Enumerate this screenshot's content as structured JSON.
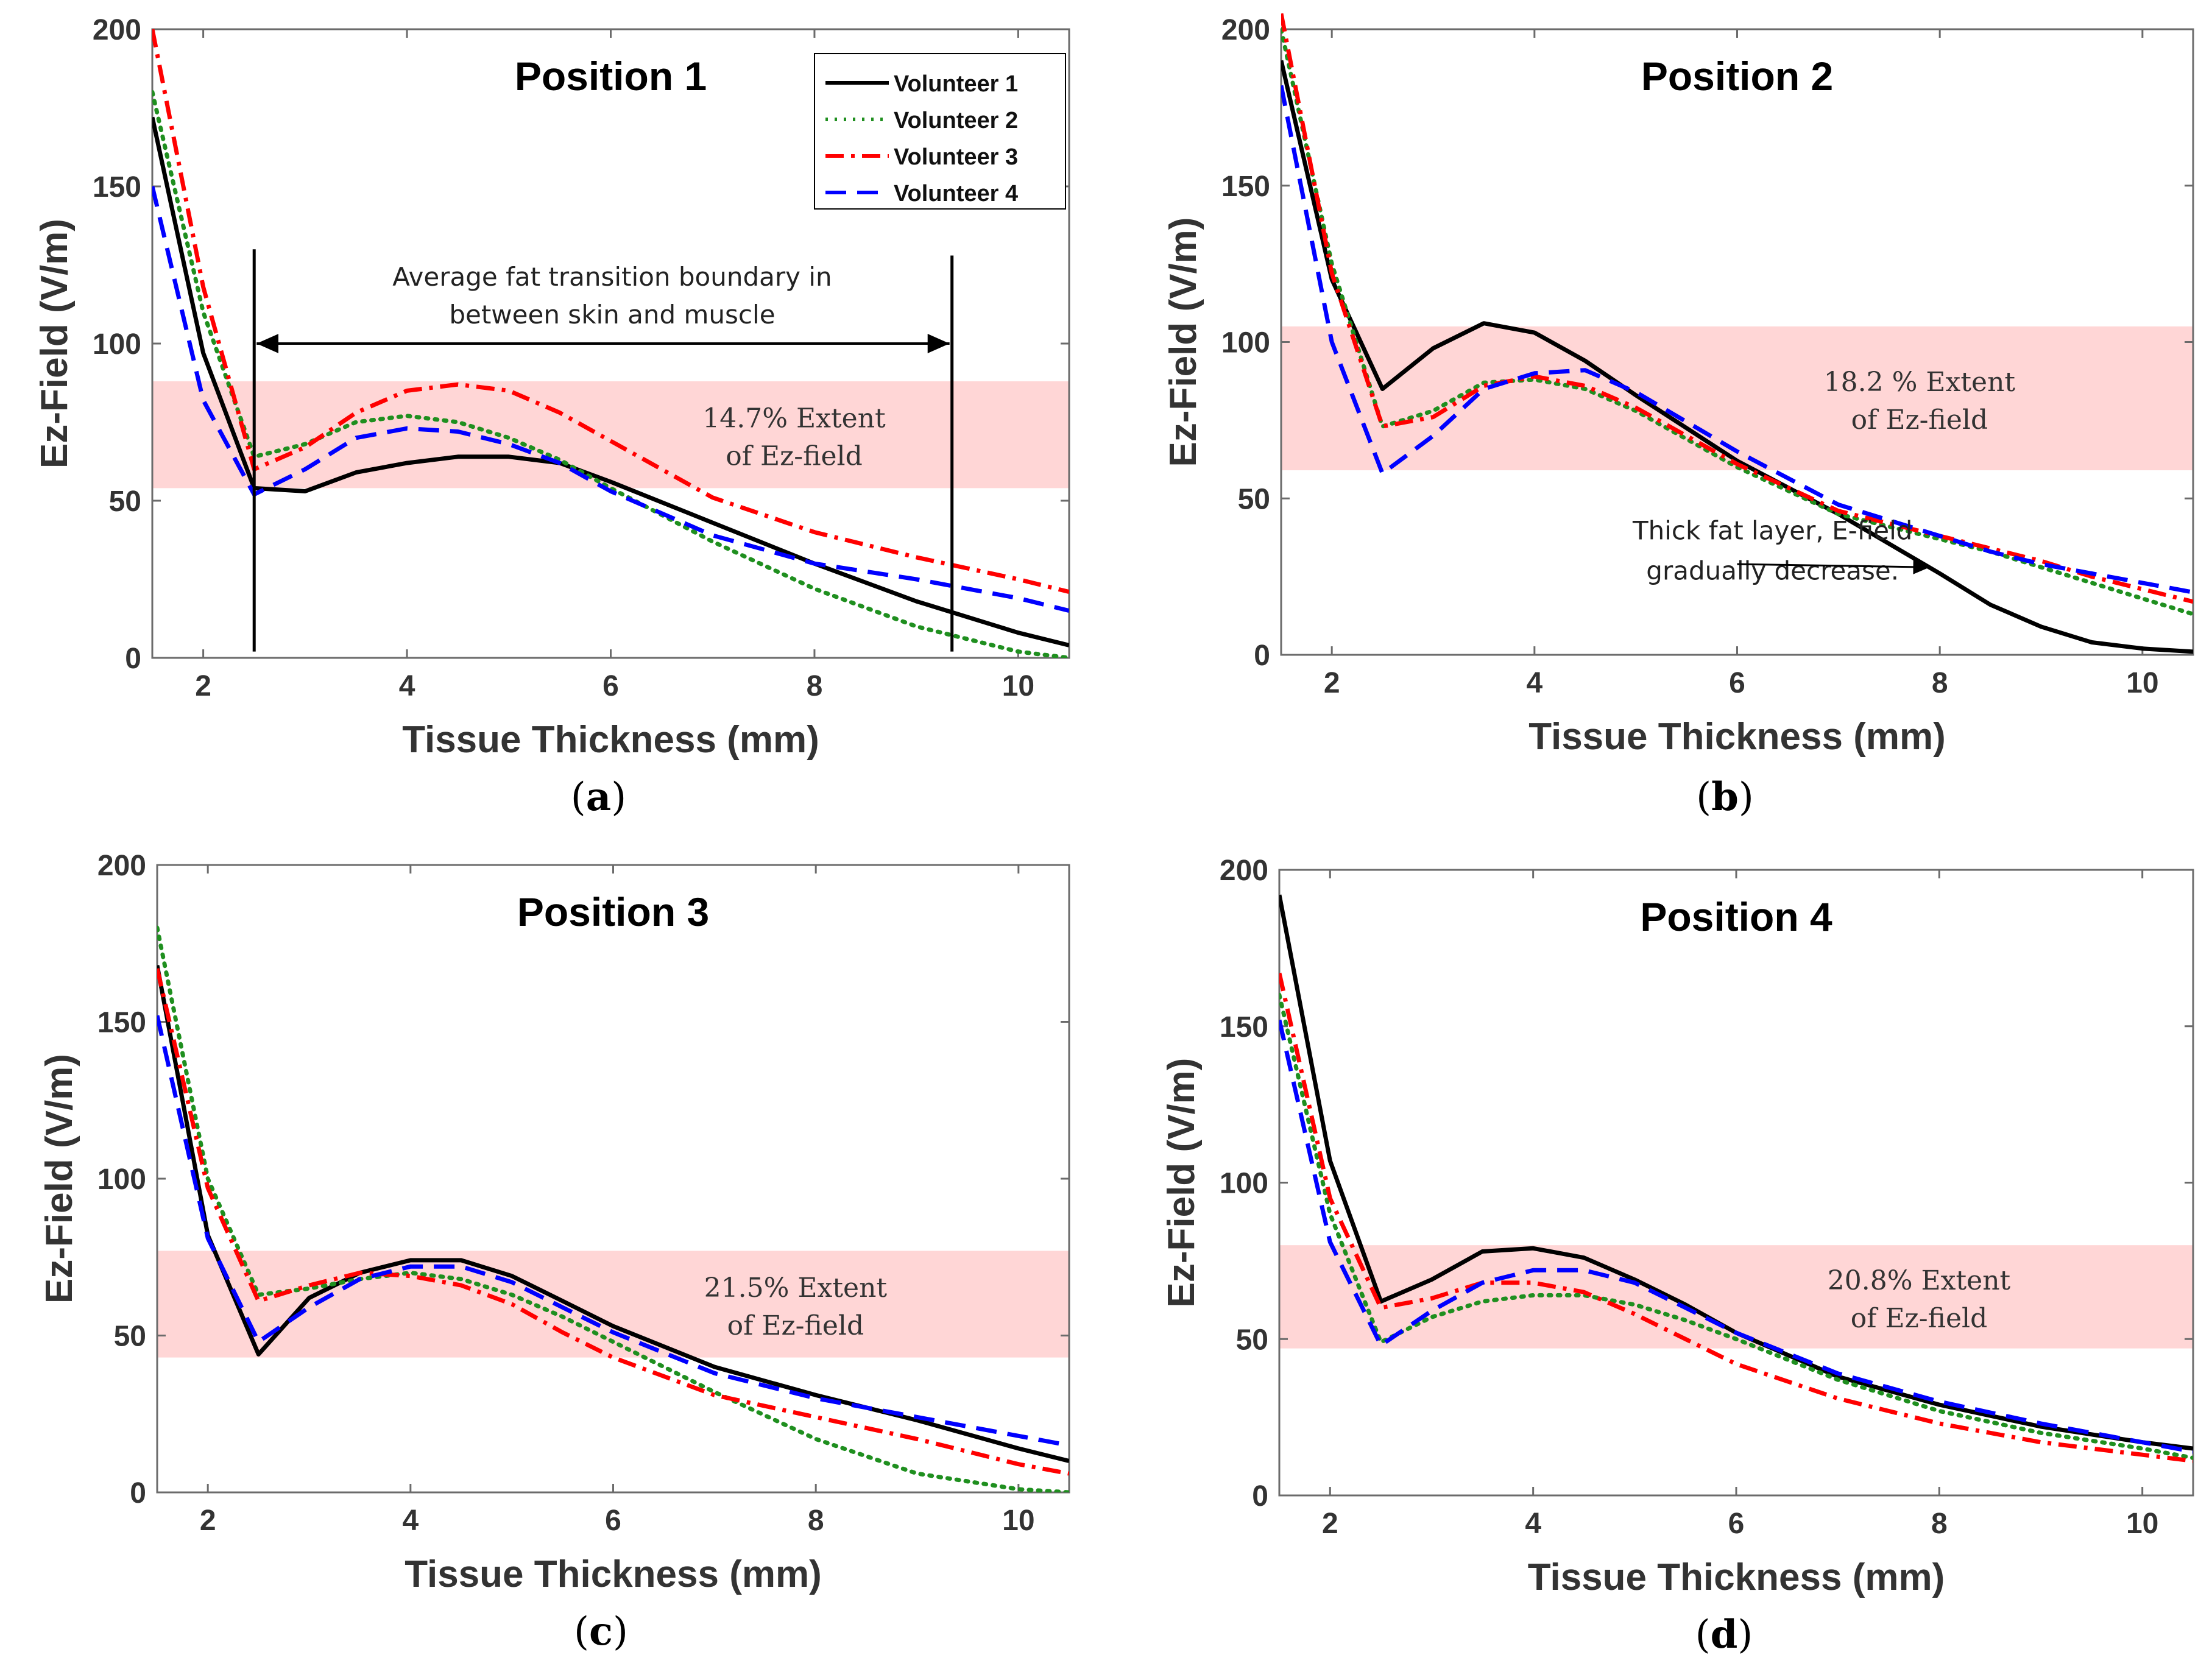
{
  "series_styles": [
    {
      "name": "Volunteer 1",
      "color": "#000000",
      "dash": "none"
    },
    {
      "name": "Volunteer 2",
      "color": "#1f8f1f",
      "dash": "dotted"
    },
    {
      "name": "Volunteer 3",
      "color": "#ff0000",
      "dash": "dashdot"
    },
    {
      "name": "Volunteer 4",
      "color": "#0000ff",
      "dash": "dashed"
    }
  ],
  "band_color": "#ffd6d6",
  "chart_data": [
    {
      "type": "line",
      "panel_label": "a",
      "title": "Position 1",
      "xlabel": "Tissue Thickness (mm)",
      "ylabel": "Ez-Field (V/m)",
      "xlim": [
        1.5,
        10.5
      ],
      "ylim": [
        0,
        200
      ],
      "xticks": [
        2,
        4,
        6,
        8,
        10
      ],
      "yticks": [
        0,
        50,
        100,
        150,
        200
      ],
      "x": [
        1.5,
        2,
        2.5,
        3,
        3.5,
        4,
        4.5,
        5,
        5.5,
        6,
        7,
        8,
        9,
        10,
        10.5
      ],
      "series": [
        {
          "name": "Volunteer 1",
          "values": [
            172,
            97,
            54,
            53,
            59,
            62,
            64,
            64,
            62,
            56,
            43,
            30,
            18,
            8,
            4
          ]
        },
        {
          "name": "Volunteer 2",
          "values": [
            180,
            110,
            64,
            68,
            75,
            77,
            75,
            70,
            63,
            54,
            37,
            22,
            10,
            2,
            0
          ]
        },
        {
          "name": "Volunteer 3",
          "values": [
            200,
            118,
            60,
            67,
            78,
            85,
            87,
            85,
            78,
            69,
            51,
            40,
            32,
            25,
            21
          ]
        },
        {
          "name": "Volunteer 4",
          "values": [
            150,
            82,
            52,
            60,
            70,
            73,
            72,
            68,
            62,
            53,
            39,
            30,
            25,
            19,
            15
          ]
        }
      ],
      "band": {
        "y_low": 54,
        "y_high": 88,
        "label_lines": [
          "14.7% Extent",
          "of Ez-field"
        ]
      },
      "legend": {
        "position": "top-right"
      },
      "boundary_annotation": {
        "x_start": 2.5,
        "x_end": 9.35,
        "arrow_y": 100,
        "line_top": 130,
        "line_bottom": 2,
        "label_lines": [
          "Average fat transition boundary in",
          "between skin and muscle"
        ]
      }
    },
    {
      "type": "line",
      "panel_label": "b",
      "title": "Position 2",
      "xlabel": "Tissue Thickness (mm)",
      "ylabel": "Ez-Field (V/m)",
      "xlim": [
        1.5,
        10.5
      ],
      "ylim": [
        0,
        200
      ],
      "xticks": [
        2,
        4,
        6,
        8,
        10
      ],
      "yticks": [
        0,
        50,
        100,
        150,
        200
      ],
      "x": [
        1.5,
        2,
        2.5,
        3,
        3.5,
        4,
        4.5,
        5,
        6,
        7,
        8,
        8.5,
        9,
        9.5,
        10,
        10.5
      ],
      "series": [
        {
          "name": "Volunteer 1",
          "values": [
            190,
            120,
            85,
            98,
            106,
            103,
            94,
            83,
            62,
            45,
            26,
            16,
            9,
            4,
            2,
            1
          ]
        },
        {
          "name": "Volunteer 2",
          "values": [
            200,
            125,
            73,
            78,
            87,
            88,
            85,
            78,
            60,
            45,
            37,
            33,
            28,
            23,
            18,
            13
          ]
        },
        {
          "name": "Volunteer 3",
          "values": [
            205,
            122,
            73,
            76,
            86,
            89,
            86,
            79,
            61,
            46,
            38,
            34,
            30,
            25,
            21,
            17
          ]
        },
        {
          "name": "Volunteer 4",
          "values": [
            182,
            100,
            58,
            70,
            85,
            90,
            91,
            84,
            65,
            48,
            38,
            33,
            29,
            26,
            23,
            20
          ]
        }
      ],
      "band": {
        "y_low": 59,
        "y_high": 105,
        "label_lines": [
          "18.2 % Extent",
          "of Ez-field"
        ]
      },
      "callout": {
        "label_lines": [
          "Thick fat layer, E-field",
          "gradually decrease."
        ],
        "arrow_from_x": 6.0,
        "arrow_from_y": 29,
        "arrow_to_x": 7.9,
        "arrow_to_y": 28
      }
    },
    {
      "type": "line",
      "panel_label": "c",
      "title": "Position 3",
      "xlabel": "Tissue Thickness (mm)",
      "ylabel": "Ez-Field (V/m)",
      "xlim": [
        1.5,
        10.5
      ],
      "ylim": [
        0,
        200
      ],
      "xticks": [
        2,
        4,
        6,
        8,
        10
      ],
      "yticks": [
        0,
        50,
        100,
        150,
        200
      ],
      "x": [
        1.5,
        2,
        2.5,
        3,
        3.5,
        4,
        4.5,
        5,
        5.5,
        6,
        7,
        8,
        9,
        10,
        10.5
      ],
      "series": [
        {
          "name": "Volunteer 1",
          "values": [
            168,
            82,
            44,
            62,
            70,
            74,
            74,
            69,
            61,
            53,
            40,
            31,
            23,
            14,
            10
          ]
        },
        {
          "name": "Volunteer 2",
          "values": [
            180,
            100,
            63,
            65,
            68,
            70,
            68,
            63,
            56,
            48,
            32,
            17,
            6,
            1,
            0
          ]
        },
        {
          "name": "Volunteer 3",
          "values": [
            167,
            97,
            61,
            66,
            70,
            69,
            66,
            60,
            51,
            43,
            31,
            24,
            17,
            9,
            6
          ]
        },
        {
          "name": "Volunteer 4",
          "values": [
            152,
            81,
            48,
            59,
            68,
            72,
            72,
            67,
            59,
            51,
            38,
            30,
            24,
            18,
            15
          ]
        }
      ],
      "band": {
        "y_low": 43,
        "y_high": 77,
        "label_lines": [
          "21.5% Extent",
          "of Ez-field"
        ]
      }
    },
    {
      "type": "line",
      "panel_label": "d",
      "title": "Position 4",
      "xlabel": "Tissue Thickness (mm)",
      "ylabel": "Ez-Field (V/m)",
      "xlim": [
        1.5,
        10.5
      ],
      "ylim": [
        0,
        200
      ],
      "xticks": [
        2,
        4,
        6,
        8,
        10
      ],
      "yticks": [
        0,
        50,
        100,
        150,
        200
      ],
      "x": [
        1.5,
        2,
        2.5,
        3,
        3.5,
        4,
        4.5,
        5,
        5.5,
        6,
        7,
        8,
        9,
        10,
        10.5
      ],
      "series": [
        {
          "name": "Volunteer 1",
          "values": [
            192,
            107,
            62,
            69,
            78,
            79,
            76,
            69,
            61,
            52,
            38,
            29,
            22,
            17,
            15
          ]
        },
        {
          "name": "Volunteer 2",
          "values": [
            160,
            90,
            49,
            57,
            62,
            64,
            64,
            61,
            56,
            50,
            37,
            27,
            20,
            15,
            12
          ]
        },
        {
          "name": "Volunteer 3",
          "values": [
            167,
            95,
            60,
            63,
            68,
            68,
            65,
            58,
            50,
            42,
            31,
            23,
            17,
            13,
            11
          ]
        },
        {
          "name": "Volunteer 4",
          "values": [
            152,
            81,
            48,
            59,
            68,
            72,
            72,
            68,
            60,
            52,
            39,
            30,
            23,
            17,
            14
          ]
        }
      ],
      "band": {
        "y_low": 47,
        "y_high": 80,
        "label_lines": [
          "20.8% Extent",
          "of Ez-field"
        ]
      }
    }
  ]
}
